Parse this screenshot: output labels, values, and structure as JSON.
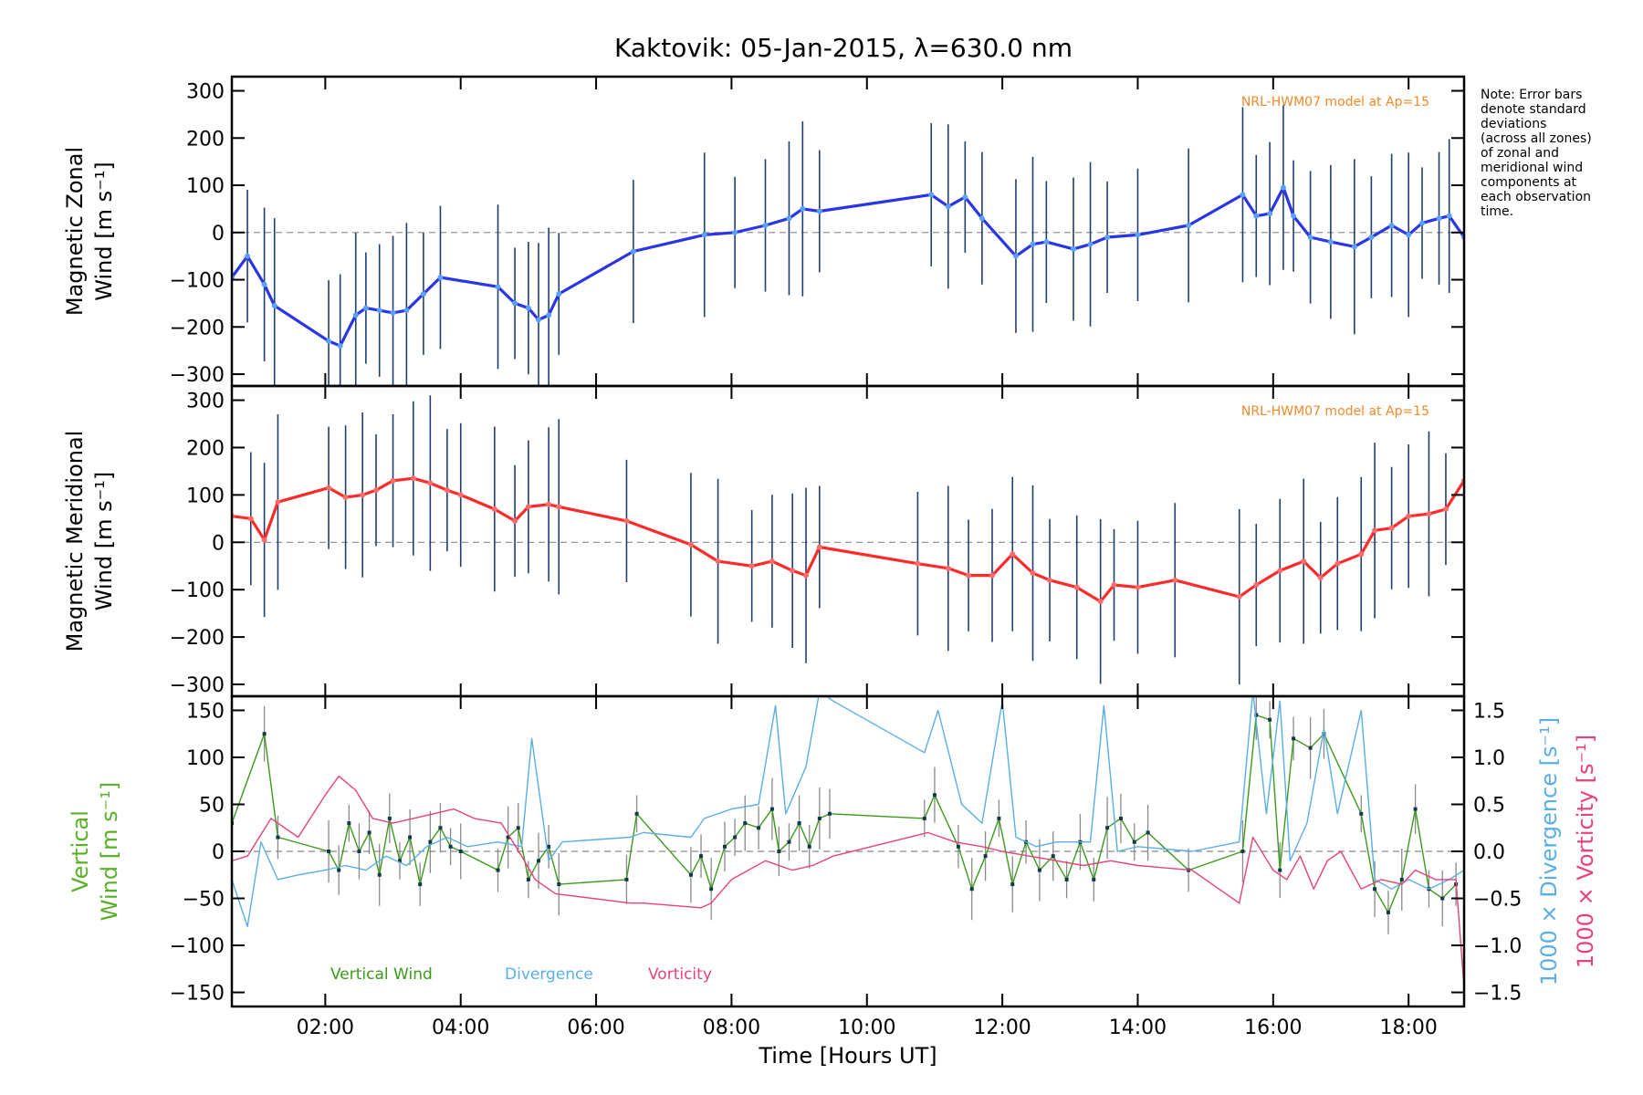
{
  "note_lines": [
    "Note: Error bars",
    "denote standard",
    "deviations",
    "(across all zones)",
    "of zonal and",
    "meridional wind",
    "components at",
    "each observation",
    "time."
  ],
  "chart_data": [
    {
      "type": "line",
      "panel": "zonal",
      "title": "Kaktovik: 05-Jan-2015, λ=630.0 nm",
      "ylabel_lines": [
        "Magnetic Zonal",
        "Wind [m s⁻¹]"
      ],
      "ylim": [
        -325,
        330
      ],
      "yticks": [
        -300,
        -200,
        -100,
        0,
        100,
        200,
        300
      ],
      "xlim": [
        0.62,
        18.82
      ],
      "model_label": "NRL-HWM07 model at Ap=15",
      "zero_line": true,
      "series": [
        {
          "color": "#2a35e6",
          "x": [
            0.62,
            0.85,
            1.1,
            1.25,
            2.05,
            2.22,
            2.45,
            2.6,
            2.8,
            3.0,
            3.2,
            3.45,
            3.7,
            4.55,
            4.8,
            5.0,
            5.15,
            5.3,
            5.45,
            6.55,
            7.6,
            8.05,
            8.5,
            8.85,
            9.05,
            9.3,
            10.95,
            11.2,
            11.45,
            11.7,
            12.2,
            12.45,
            12.65,
            13.05,
            13.3,
            13.55,
            14.0,
            14.75,
            15.55,
            15.75,
            15.95,
            16.15,
            16.3,
            16.55,
            16.85,
            17.2,
            17.45,
            17.75,
            18.0,
            18.2,
            18.45,
            18.6,
            18.82
          ],
          "y": [
            -95,
            -50,
            -110,
            -155,
            -230,
            -240,
            -175,
            -160,
            -165,
            -170,
            -165,
            -130,
            -95,
            -115,
            -150,
            -160,
            -185,
            -175,
            -130,
            -40,
            -5,
            0,
            15,
            30,
            50,
            45,
            80,
            55,
            75,
            30,
            -50,
            -25,
            -20,
            -35,
            -25,
            -10,
            -5,
            15,
            80,
            35,
            40,
            95,
            35,
            -10,
            -20,
            -30,
            -10,
            15,
            -5,
            20,
            30,
            35,
            -10
          ]
        }
      ]
    },
    {
      "type": "line",
      "panel": "meridional",
      "ylabel_lines": [
        "Magnetic Meridional",
        "Wind [m s⁻¹]"
      ],
      "ylim": [
        -325,
        330
      ],
      "yticks": [
        -300,
        -200,
        -100,
        0,
        100,
        200,
        300
      ],
      "xlim": [
        0.62,
        18.82
      ],
      "model_label": "NRL-HWM07 model at Ap=15",
      "zero_line": true,
      "series": [
        {
          "color": "#ff2a2a",
          "x": [
            0.62,
            0.9,
            1.1,
            1.3,
            2.05,
            2.3,
            2.55,
            2.75,
            3.0,
            3.3,
            3.55,
            3.8,
            4.0,
            4.5,
            4.8,
            5.0,
            5.3,
            5.45,
            6.45,
            7.4,
            7.8,
            8.3,
            8.6,
            8.9,
            9.1,
            9.3,
            10.75,
            11.2,
            11.5,
            11.85,
            12.15,
            12.45,
            12.7,
            13.1,
            13.45,
            13.65,
            14.0,
            14.55,
            15.5,
            15.75,
            16.1,
            16.45,
            16.7,
            16.95,
            17.3,
            17.5,
            17.75,
            18.0,
            18.3,
            18.55,
            18.82
          ],
          "y": [
            55,
            50,
            5,
            85,
            115,
            95,
            100,
            110,
            130,
            135,
            125,
            110,
            100,
            70,
            45,
            75,
            80,
            75,
            45,
            -5,
            -40,
            -50,
            -40,
            -60,
            -70,
            -10,
            -45,
            -55,
            -70,
            -70,
            -25,
            -65,
            -80,
            -95,
            -125,
            -90,
            -95,
            -80,
            -115,
            -90,
            -60,
            -40,
            -75,
            -45,
            -25,
            25,
            30,
            55,
            60,
            70,
            130
          ]
        }
      ]
    },
    {
      "type": "line",
      "panel": "vertical",
      "ylabel_lines": [
        "Vertical",
        "Wind [m s⁻¹]"
      ],
      "ylim": [
        -165,
        165
      ],
      "yticks": [
        -150,
        -100,
        -50,
        0,
        50,
        100,
        150
      ],
      "y2label_lines": [
        "1000 × Divergence [s⁻¹]",
        "1000 × Vorticity [s⁻¹]"
      ],
      "y2lim": [
        -1.65,
        1.65
      ],
      "y2ticks": [
        -1.5,
        -1.0,
        -0.5,
        0.0,
        0.5,
        1.0,
        1.5
      ],
      "xlim": [
        0.62,
        18.82
      ],
      "xticks": [
        2,
        4,
        6,
        8,
        10,
        12,
        14,
        16,
        18
      ],
      "xtick_labels": [
        "02:00",
        "04:00",
        "06:00",
        "08:00",
        "10:00",
        "12:00",
        "14:00",
        "16:00",
        "18:00"
      ],
      "xlabel": "Time [Hours UT]",
      "zero_line": true,
      "legend": [
        "Vertical Wind",
        "Divergence",
        "Vorticity"
      ],
      "legend_placement": "bottom-left",
      "series": [
        {
          "name": "Vertical Wind",
          "axis": "left",
          "color": "#3a9a1a",
          "x": [
            0.62,
            1.1,
            1.3,
            2.05,
            2.2,
            2.35,
            2.5,
            2.65,
            2.8,
            2.95,
            3.1,
            3.25,
            3.4,
            3.55,
            3.7,
            3.85,
            4.0,
            4.55,
            4.7,
            4.85,
            5.0,
            5.15,
            5.3,
            5.45,
            6.45,
            6.6,
            7.4,
            7.55,
            7.7,
            7.9,
            8.05,
            8.2,
            8.4,
            8.6,
            8.7,
            8.85,
            9.0,
            9.15,
            9.3,
            9.45,
            10.85,
            11.0,
            11.35,
            11.55,
            11.75,
            11.95,
            12.15,
            12.35,
            12.55,
            12.75,
            12.95,
            13.15,
            13.35,
            13.55,
            13.75,
            13.95,
            14.15,
            14.75,
            15.55,
            15.75,
            15.95,
            16.1,
            16.3,
            16.55,
            16.75,
            17.3,
            17.5,
            17.7,
            17.9,
            18.1,
            18.3,
            18.5,
            18.7
          ],
          "y": [
            30,
            125,
            15,
            0,
            -20,
            30,
            0,
            20,
            -25,
            35,
            -10,
            15,
            -35,
            10,
            25,
            5,
            0,
            -20,
            15,
            25,
            -30,
            -10,
            5,
            -35,
            -30,
            40,
            -25,
            -5,
            -40,
            5,
            15,
            30,
            25,
            45,
            0,
            10,
            30,
            5,
            35,
            40,
            35,
            60,
            5,
            -40,
            -5,
            35,
            -35,
            10,
            -20,
            -5,
            -30,
            10,
            -30,
            25,
            35,
            10,
            20,
            -20,
            0,
            145,
            140,
            -20,
            120,
            110,
            125,
            40,
            -40,
            -65,
            -30,
            45,
            -40,
            -50,
            -35
          ]
        },
        {
          "name": "Divergence",
          "axis": "right",
          "color": "#5aaee6",
          "x": [
            0.62,
            0.85,
            1.05,
            1.3,
            1.6,
            2.0,
            2.3,
            2.6,
            2.9,
            3.2,
            3.5,
            3.8,
            4.1,
            4.55,
            4.9,
            5.05,
            5.3,
            5.5,
            6.5,
            6.7,
            7.4,
            7.6,
            8.0,
            8.4,
            8.65,
            8.8,
            9.1,
            9.3,
            9.5,
            10.85,
            11.05,
            11.4,
            11.7,
            12.0,
            12.2,
            12.5,
            12.8,
            13.3,
            13.5,
            13.7,
            14.0,
            14.8,
            15.5,
            15.7,
            15.9,
            16.1,
            16.25,
            16.5,
            16.75,
            16.95,
            17.3,
            17.5,
            17.75,
            18.0,
            18.3,
            18.6,
            18.82
          ],
          "y": [
            -0.3,
            -0.8,
            0.1,
            -0.3,
            -0.25,
            -0.2,
            -0.15,
            -0.2,
            -0.05,
            -0.15,
            0.05,
            0.15,
            0.05,
            0.1,
            0.05,
            1.2,
            -0.1,
            0.1,
            0.15,
            0.2,
            0.15,
            0.35,
            0.45,
            0.5,
            1.55,
            0.4,
            0.9,
            1.7,
            1.6,
            1.05,
            1.5,
            0.5,
            0.3,
            1.6,
            0.15,
            0.05,
            0.1,
            0.1,
            1.55,
            0.0,
            0.05,
            0.0,
            0.1,
            1.7,
            0.4,
            1.6,
            -0.1,
            0.3,
            1.3,
            0.4,
            1.5,
            -0.3,
            -0.4,
            -0.3,
            -0.4,
            -0.3,
            -0.2
          ]
        },
        {
          "name": "Vorticity",
          "axis": "right",
          "color": "#e8427a",
          "x": [
            0.62,
            0.85,
            1.2,
            1.6,
            2.0,
            2.2,
            2.45,
            2.7,
            3.0,
            3.3,
            3.6,
            3.9,
            4.2,
            4.6,
            4.9,
            5.1,
            5.4,
            6.5,
            6.7,
            7.55,
            7.7,
            8.0,
            8.5,
            8.9,
            9.2,
            9.5,
            10.9,
            11.3,
            11.7,
            12.0,
            12.4,
            12.8,
            13.2,
            13.6,
            14.0,
            14.8,
            15.5,
            15.7,
            16.0,
            16.2,
            16.4,
            16.6,
            16.8,
            17.0,
            17.3,
            17.6,
            17.9,
            18.1,
            18.4,
            18.7,
            18.82
          ],
          "y": [
            -0.1,
            -0.05,
            0.35,
            0.15,
            0.6,
            0.8,
            0.65,
            0.35,
            0.3,
            0.35,
            0.4,
            0.45,
            0.35,
            0.3,
            -0.05,
            -0.3,
            -0.45,
            -0.55,
            -0.55,
            -0.6,
            -0.55,
            -0.3,
            -0.1,
            -0.2,
            -0.15,
            -0.05,
            0.2,
            0.1,
            0.05,
            0.0,
            -0.05,
            -0.1,
            -0.15,
            -0.1,
            -0.15,
            -0.2,
            -0.55,
            0.15,
            -0.2,
            -0.3,
            -0.05,
            -0.4,
            -0.1,
            0.0,
            -0.4,
            -0.3,
            -0.35,
            -0.2,
            -0.3,
            -0.3,
            -1.45
          ]
        }
      ]
    }
  ]
}
